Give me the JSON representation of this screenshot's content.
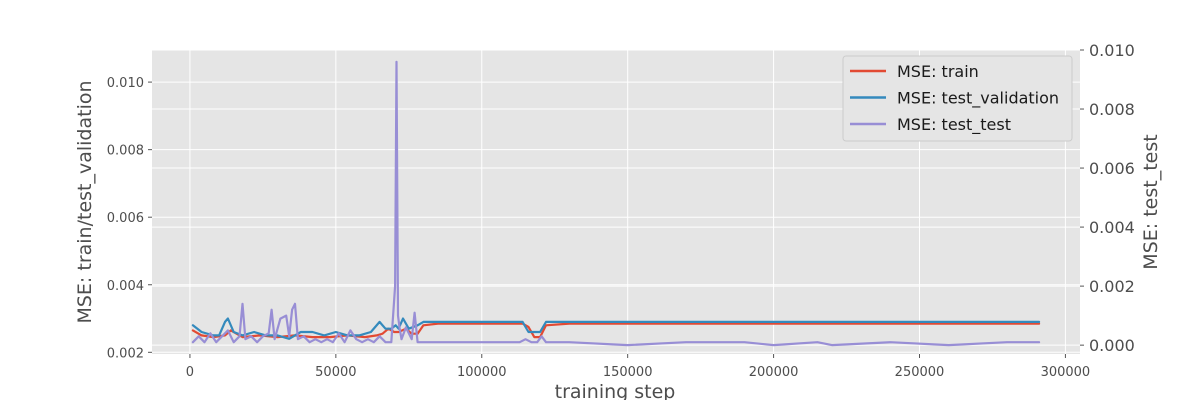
{
  "chart_data": {
    "type": "line",
    "title": "",
    "xlabel": "training step",
    "ylabel_left": "MSE: train/test_validation",
    "ylabel_right": "MSE: test_test",
    "xlim": [
      -13000,
      305000
    ],
    "ylim_left": [
      0.00195,
      0.01095
    ],
    "ylim_right": [
      -0.0003,
      0.01
    ],
    "x_ticks": [
      0,
      50000,
      100000,
      150000,
      200000,
      250000,
      300000
    ],
    "x_tick_labels": [
      "0",
      "50000",
      "100000",
      "150000",
      "200000",
      "250000",
      "300000"
    ],
    "y_left_ticks": [
      0.002,
      0.004,
      0.006,
      0.008,
      0.01
    ],
    "y_left_tick_labels": [
      "0.002",
      "0.004",
      "0.006",
      "0.008",
      "0.010"
    ],
    "y_right_ticks": [
      0.0,
      0.002,
      0.004,
      0.006,
      0.008,
      0.01
    ],
    "y_right_tick_labels": [
      "0.000",
      "0.002",
      "0.004",
      "0.006",
      "0.008",
      "0.010"
    ],
    "grid": true,
    "legend_position": "top-right",
    "series": [
      {
        "name": "MSE: train",
        "axis": "left",
        "color": "#e24a33",
        "x": [
          1000,
          4000,
          8000,
          12000,
          14000,
          18000,
          24000,
          30000,
          36000,
          42000,
          48000,
          54000,
          60000,
          64000,
          66000,
          68000,
          70000,
          70800,
          71500,
          74000,
          76000,
          78000,
          80000,
          85000,
          95000,
          105000,
          110000,
          114000,
          116000,
          118000,
          120000,
          122000,
          130000,
          150000,
          170000,
          190000,
          210000,
          230000,
          250000,
          270000,
          291000
        ],
        "y": [
          0.00265,
          0.0025,
          0.00245,
          0.0025,
          0.00265,
          0.00245,
          0.0025,
          0.00245,
          0.0025,
          0.00245,
          0.00245,
          0.0025,
          0.00245,
          0.0025,
          0.00255,
          0.0027,
          0.0026,
          0.0026,
          0.0026,
          0.0027,
          0.00255,
          0.00255,
          0.0028,
          0.00285,
          0.00285,
          0.00285,
          0.00285,
          0.00285,
          0.00275,
          0.00245,
          0.00245,
          0.0028,
          0.00285,
          0.00285,
          0.00285,
          0.00285,
          0.00285,
          0.00285,
          0.00285,
          0.00285,
          0.00285
        ]
      },
      {
        "name": "MSE: test_validation",
        "axis": "left",
        "color": "#348abd",
        "x": [
          1000,
          4000,
          8000,
          10000,
          12000,
          13000,
          15000,
          18000,
          22000,
          26000,
          30000,
          34000,
          38000,
          42000,
          46000,
          50000,
          54000,
          58000,
          62000,
          65000,
          67000,
          69000,
          70500,
          71500,
          73000,
          75000,
          78000,
          80000,
          85000,
          95000,
          105000,
          112000,
          114000,
          116000,
          118000,
          120000,
          122000,
          130000,
          150000,
          170000,
          190000,
          210000,
          230000,
          250000,
          270000,
          291000
        ],
        "y": [
          0.0028,
          0.0026,
          0.0025,
          0.0025,
          0.0029,
          0.003,
          0.0026,
          0.0025,
          0.0026,
          0.0025,
          0.0025,
          0.0024,
          0.0026,
          0.0026,
          0.0025,
          0.0026,
          0.0025,
          0.0025,
          0.0026,
          0.0029,
          0.0027,
          0.0027,
          0.0028,
          0.0027,
          0.003,
          0.0027,
          0.0028,
          0.0029,
          0.0029,
          0.0029,
          0.0029,
          0.0029,
          0.0029,
          0.0026,
          0.0026,
          0.0026,
          0.0029,
          0.0029,
          0.0029,
          0.0029,
          0.0029,
          0.0029,
          0.0029,
          0.0029,
          0.0029,
          0.0029
        ]
      },
      {
        "name": "MSE: test_test",
        "axis": "right",
        "color": "#988ed5",
        "x": [
          1000,
          3000,
          5000,
          7000,
          9000,
          11000,
          13000,
          15000,
          17000,
          18000,
          19000,
          21000,
          23000,
          25000,
          27000,
          28000,
          29000,
          31000,
          33000,
          34000,
          35000,
          36000,
          37000,
          39000,
          41000,
          43000,
          45000,
          47000,
          49000,
          51000,
          53000,
          55000,
          57000,
          59000,
          61000,
          63000,
          65000,
          67000,
          69000,
          70300,
          70800,
          71300,
          71800,
          72500,
          74000,
          76000,
          77000,
          78000,
          80000,
          90000,
          100000,
          110000,
          113000,
          115000,
          117000,
          119000,
          120500,
          122000,
          130000,
          150000,
          170000,
          190000,
          200000,
          215000,
          220000,
          240000,
          260000,
          280000,
          291000
        ],
        "y": [
          0.0001,
          0.0003,
          0.0001,
          0.0004,
          0.0001,
          0.0003,
          0.0005,
          0.0001,
          0.0003,
          0.0014,
          0.0002,
          0.0003,
          0.0001,
          0.0003,
          0.0004,
          0.0012,
          0.0002,
          0.0009,
          0.001,
          0.0003,
          0.0012,
          0.0014,
          0.0002,
          0.0003,
          0.0001,
          0.0002,
          0.0001,
          0.0002,
          0.0001,
          0.0004,
          0.0001,
          0.0005,
          0.0002,
          0.0001,
          0.0002,
          0.0001,
          0.0003,
          0.0001,
          0.0001,
          0.002,
          0.0096,
          0.001,
          0.0006,
          0.0002,
          0.0006,
          0.0002,
          0.0011,
          0.0001,
          0.0001,
          0.0001,
          0.0001,
          0.0001,
          0.0001,
          0.0002,
          0.0001,
          0.0001,
          0.0003,
          0.0001,
          0.0001,
          0.0,
          0.0001,
          0.0001,
          0.0,
          0.0001,
          0.0,
          0.0001,
          0.0,
          0.0001,
          0.0001
        ]
      }
    ]
  }
}
